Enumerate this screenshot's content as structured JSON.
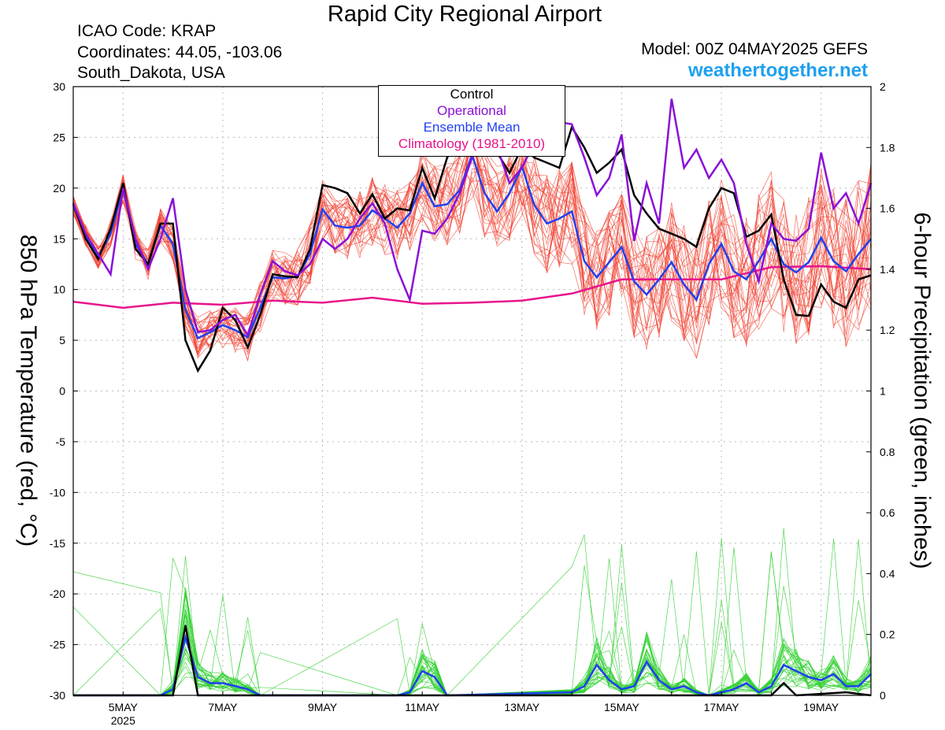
{
  "header": {
    "title": "Rapid City Regional Airport",
    "icao": "ICAO Code: KRAP",
    "coords": "Coordinates: 44.05, -103.06",
    "location": "South_Dakota, USA",
    "model": "Model: 00Z 04MAY2025 GEFS",
    "brand": "weathertogether.net"
  },
  "chart_data": {
    "type": "line",
    "title": "Rapid City Regional Airport",
    "ylabel": "850 hPa Temperature (red, °C)",
    "y2label": "6-hour Precipitation (green, inches)",
    "ylim": [
      -30,
      30
    ],
    "y2lim": [
      0,
      2
    ],
    "yticks": [
      -30,
      -25,
      -20,
      -15,
      -10,
      -5,
      0,
      5,
      10,
      15,
      20,
      25,
      30
    ],
    "y2ticks": [
      0,
      0.2,
      0.4,
      0.6,
      0.8,
      1,
      1.2,
      1.4,
      1.6,
      1.8,
      2
    ],
    "x_axis": {
      "start": "2025-05-04 00Z",
      "end": "2025-05-20 00Z",
      "tick_labels": [
        "5MAY",
        "7MAY",
        "9MAY",
        "11MAY",
        "13MAY",
        "15MAY",
        "17MAY",
        "19MAY"
      ],
      "tick_days": [
        1,
        3,
        5,
        7,
        9,
        11,
        13,
        15
      ],
      "year_label": "2025"
    },
    "grid": true,
    "legend": {
      "placement": "top-center",
      "entries": [
        {
          "label": "Control",
          "color": "#000000"
        },
        {
          "label": "Operational",
          "color": "#8a10d8"
        },
        {
          "label": "Ensemble Mean",
          "color": "#2040f0"
        },
        {
          "label": "Climatology (1981-2010)",
          "color": "#e8148c"
        }
      ]
    },
    "colors": {
      "members_temp": "#f04030",
      "members_precip": "#30d030",
      "control": "#000000",
      "operational": "#8a10d8",
      "mean": "#2040f0",
      "climatology": "#e8148c"
    },
    "series_temp": {
      "control": [
        [
          0,
          18.5
        ],
        [
          0.25,
          15
        ],
        [
          0.5,
          13
        ],
        [
          0.75,
          16
        ],
        [
          1,
          20.5
        ],
        [
          1.25,
          14
        ],
        [
          1.5,
          12.5
        ],
        [
          1.75,
          16.5
        ],
        [
          2,
          16.5
        ],
        [
          2.25,
          5
        ],
        [
          2.5,
          2
        ],
        [
          2.75,
          4
        ],
        [
          3,
          8.2
        ],
        [
          3.25,
          7
        ],
        [
          3.5,
          4.3
        ],
        [
          3.75,
          7.5
        ],
        [
          4,
          11.5
        ],
        [
          4.25,
          11.3
        ],
        [
          4.5,
          11.2
        ],
        [
          4.75,
          14
        ],
        [
          5,
          20.3
        ],
        [
          5.25,
          20
        ],
        [
          5.5,
          19.5
        ],
        [
          5.75,
          17.5
        ],
        [
          6,
          19.4
        ],
        [
          6.25,
          17
        ],
        [
          6.5,
          18
        ],
        [
          6.75,
          17.8
        ],
        [
          7,
          22
        ],
        [
          7.25,
          19
        ],
        [
          7.5,
          23
        ],
        [
          7.75,
          25
        ],
        [
          8,
          25
        ],
        [
          8.25,
          24
        ],
        [
          8.5,
          23.5
        ],
        [
          8.75,
          21.5
        ],
        [
          9,
          24
        ],
        [
          9.25,
          23
        ],
        [
          9.5,
          22.5
        ],
        [
          9.75,
          22
        ],
        [
          10,
          26
        ],
        [
          10.25,
          24
        ],
        [
          10.5,
          21.5
        ],
        [
          10.75,
          22.5
        ],
        [
          11,
          23.8
        ],
        [
          11.25,
          19.3
        ],
        [
          11.5,
          17.5
        ],
        [
          11.75,
          16
        ],
        [
          12,
          15.5
        ],
        [
          12.25,
          15
        ],
        [
          12.5,
          14.2
        ],
        [
          12.75,
          18
        ],
        [
          13,
          20
        ],
        [
          13.25,
          19.5
        ],
        [
          13.5,
          15.2
        ],
        [
          13.75,
          15.8
        ],
        [
          14,
          17.4
        ],
        [
          14.25,
          11
        ],
        [
          14.5,
          7.5
        ],
        [
          14.75,
          7.4
        ],
        [
          15,
          10.5
        ],
        [
          15.25,
          8.8
        ],
        [
          15.5,
          8.2
        ],
        [
          15.75,
          11
        ],
        [
          16,
          11.4
        ]
      ],
      "operational": [
        [
          0,
          18.5
        ],
        [
          0.25,
          15.5
        ],
        [
          0.5,
          13.5
        ],
        [
          0.75,
          11.5
        ],
        [
          1,
          20
        ],
        [
          1.25,
          15
        ],
        [
          1.5,
          12
        ],
        [
          1.75,
          15
        ],
        [
          2,
          19
        ],
        [
          2.25,
          10
        ],
        [
          2.5,
          5.8
        ],
        [
          2.75,
          6
        ],
        [
          3,
          7
        ],
        [
          3.25,
          7.5
        ],
        [
          3.5,
          5.5
        ],
        [
          3.75,
          9.5
        ],
        [
          4,
          12.8
        ],
        [
          4.25,
          11.8
        ],
        [
          4.5,
          11.4
        ],
        [
          4.75,
          12.5
        ],
        [
          5,
          15
        ],
        [
          5.25,
          14
        ],
        [
          5.5,
          15
        ],
        [
          5.75,
          17
        ],
        [
          6,
          18.5
        ],
        [
          6.25,
          16.5
        ],
        [
          6.5,
          12
        ],
        [
          6.75,
          9
        ],
        [
          7,
          15.8
        ],
        [
          7.25,
          15.5
        ],
        [
          7.5,
          17
        ],
        [
          7.75,
          19.5
        ],
        [
          8,
          23
        ],
        [
          8.25,
          25.5
        ],
        [
          8.5,
          24
        ],
        [
          8.75,
          20.5
        ],
        [
          9,
          22
        ],
        [
          9.25,
          24.5
        ],
        [
          9.5,
          25.5
        ],
        [
          9.75,
          26.5
        ],
        [
          10,
          26.3
        ],
        [
          10.25,
          23
        ],
        [
          10.5,
          19.3
        ],
        [
          10.75,
          21
        ],
        [
          11,
          25.3
        ],
        [
          11.25,
          14.8
        ],
        [
          11.5,
          20.5
        ],
        [
          11.75,
          16.5
        ],
        [
          12,
          28.8
        ],
        [
          12.25,
          22
        ],
        [
          12.5,
          23.8
        ],
        [
          12.75,
          21
        ],
        [
          13,
          22.8
        ],
        [
          13.25,
          20.5
        ],
        [
          13.5,
          14.5
        ],
        [
          13.75,
          10.8
        ],
        [
          14,
          16.5
        ],
        [
          14.25,
          15
        ],
        [
          14.5,
          14.8
        ],
        [
          14.75,
          16
        ],
        [
          15,
          23.5
        ],
        [
          15.25,
          18
        ],
        [
          15.5,
          19.5
        ],
        [
          15.75,
          16.5
        ],
        [
          16,
          20.5
        ]
      ],
      "mean": [
        [
          0,
          18.3
        ],
        [
          0.25,
          15.3
        ],
        [
          0.5,
          13.2
        ],
        [
          0.75,
          15.5
        ],
        [
          1,
          20
        ],
        [
          1.25,
          14.5
        ],
        [
          1.5,
          12.5
        ],
        [
          1.75,
          16.3
        ],
        [
          2,
          14.5
        ],
        [
          2.25,
          8
        ],
        [
          2.5,
          5.2
        ],
        [
          2.75,
          5.8
        ],
        [
          3,
          6.5
        ],
        [
          3.25,
          6
        ],
        [
          3.5,
          5.3
        ],
        [
          3.75,
          8.2
        ],
        [
          4,
          11.2
        ],
        [
          4.25,
          11.1
        ],
        [
          4.5,
          11.3
        ],
        [
          4.75,
          13.5
        ],
        [
          5,
          17.9
        ],
        [
          5.25,
          16.3
        ],
        [
          5.5,
          16.1
        ],
        [
          5.75,
          16.3
        ],
        [
          6,
          17.8
        ],
        [
          6.25,
          17
        ],
        [
          6.5,
          16.1
        ],
        [
          6.75,
          17.5
        ],
        [
          7,
          20.5
        ],
        [
          7.25,
          18.2
        ],
        [
          7.5,
          18.4
        ],
        [
          7.75,
          19.8
        ],
        [
          8,
          23.3
        ],
        [
          8.25,
          19.5
        ],
        [
          8.5,
          17.7
        ],
        [
          8.75,
          19.5
        ],
        [
          9,
          22.1
        ],
        [
          9.25,
          18.3
        ],
        [
          9.5,
          16.5
        ],
        [
          9.75,
          17
        ],
        [
          10,
          17.7
        ],
        [
          10.25,
          12.8
        ],
        [
          10.5,
          11.2
        ],
        [
          10.75,
          12.7
        ],
        [
          11,
          14.2
        ],
        [
          11.25,
          10.8
        ],
        [
          11.5,
          9.5
        ],
        [
          11.75,
          11
        ],
        [
          12,
          12.7
        ],
        [
          12.25,
          10.5
        ],
        [
          12.5,
          9
        ],
        [
          12.75,
          12.5
        ],
        [
          13,
          14.5
        ],
        [
          13.25,
          11.8
        ],
        [
          13.5,
          11
        ],
        [
          13.75,
          12.8
        ],
        [
          14,
          15
        ],
        [
          14.25,
          12.5
        ],
        [
          14.5,
          11.7
        ],
        [
          14.75,
          12.7
        ],
        [
          15,
          15.1
        ],
        [
          15.25,
          12.8
        ],
        [
          15.5,
          11.8
        ],
        [
          15.75,
          13.5
        ],
        [
          16,
          15
        ]
      ],
      "climatology": [
        [
          0,
          8.8
        ],
        [
          1,
          8.2
        ],
        [
          2,
          8.7
        ],
        [
          3,
          8.5
        ],
        [
          4,
          8.9
        ],
        [
          5,
          8.7
        ],
        [
          6,
          9.2
        ],
        [
          7,
          8.6
        ],
        [
          8,
          8.7
        ],
        [
          9,
          8.9
        ],
        [
          10,
          9.6
        ],
        [
          11,
          11
        ],
        [
          12,
          11
        ],
        [
          13,
          11
        ],
        [
          14,
          12.2
        ],
        [
          15,
          12.3
        ],
        [
          16,
          12
        ]
      ]
    },
    "series_precip": {
      "control": [
        [
          0,
          0
        ],
        [
          2,
          0
        ],
        [
          2.25,
          0.23
        ],
        [
          2.5,
          0
        ],
        [
          7,
          0
        ],
        [
          14,
          0
        ],
        [
          14.25,
          0.04
        ],
        [
          14.5,
          0
        ],
        [
          15.5,
          0.01
        ],
        [
          16,
          0
        ]
      ],
      "mean": [
        [
          0,
          0
        ],
        [
          1.75,
          0
        ],
        [
          2,
          0.02
        ],
        [
          2.25,
          0.19
        ],
        [
          2.5,
          0.06
        ],
        [
          2.75,
          0.04
        ],
        [
          3,
          0.04
        ],
        [
          3.25,
          0.03
        ],
        [
          3.5,
          0.02
        ],
        [
          3.75,
          0
        ],
        [
          6.5,
          0
        ],
        [
          6.75,
          0.01
        ],
        [
          7,
          0.08
        ],
        [
          7.25,
          0.06
        ],
        [
          7.5,
          0
        ],
        [
          10,
          0.01
        ],
        [
          10.25,
          0.03
        ],
        [
          10.5,
          0.1
        ],
        [
          10.75,
          0.05
        ],
        [
          11,
          0.02
        ],
        [
          11.25,
          0.03
        ],
        [
          11.5,
          0.11
        ],
        [
          11.75,
          0.05
        ],
        [
          12,
          0.02
        ],
        [
          12.25,
          0.03
        ],
        [
          12.5,
          0.01
        ],
        [
          12.75,
          0
        ],
        [
          13,
          0.01
        ],
        [
          13.25,
          0.02
        ],
        [
          13.5,
          0.04
        ],
        [
          13.75,
          0.01
        ],
        [
          14,
          0.03
        ],
        [
          14.25,
          0.1
        ],
        [
          14.5,
          0.08
        ],
        [
          14.75,
          0.06
        ],
        [
          15,
          0.05
        ],
        [
          15.25,
          0.07
        ],
        [
          15.5,
          0.03
        ],
        [
          15.75,
          0.03
        ],
        [
          16,
          0.07
        ]
      ]
    }
  }
}
